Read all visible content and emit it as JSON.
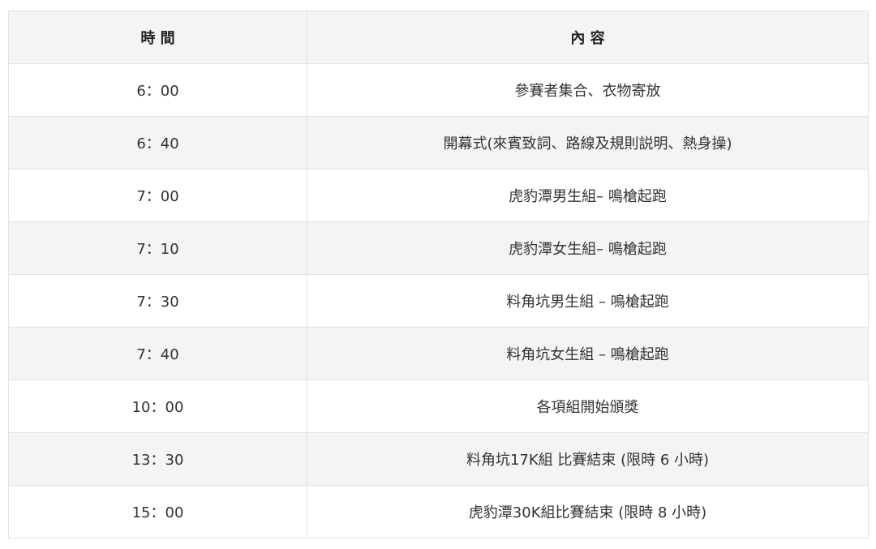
{
  "table": {
    "headers": [
      "時 間",
      "內 容"
    ],
    "rows": [
      [
        "6：00",
        "參賽者集合、衣物寄放"
      ],
      [
        "6：40",
        "開幕式(來賓致詞、路線及規則説明、熱身操)"
      ],
      [
        "7：00",
        "虎豹潭男生組–  鳴槍起跑"
      ],
      [
        "7：10",
        "虎豹潭女生組–  鳴槍起跑"
      ],
      [
        "7：30",
        "料角坑男生組 –  鳴槍起跑"
      ],
      [
        "7：40",
        "料角坑女生組 –  鳴槍起跑"
      ],
      [
        "10：00",
        "各項組開始頒獎"
      ],
      [
        "13：30",
        "料角坑17K組 比賽結束 (限時 6 小時)"
      ],
      [
        "15：00",
        "虎豹潭30K組比賽結束 (限時 8 小時)"
      ]
    ]
  }
}
